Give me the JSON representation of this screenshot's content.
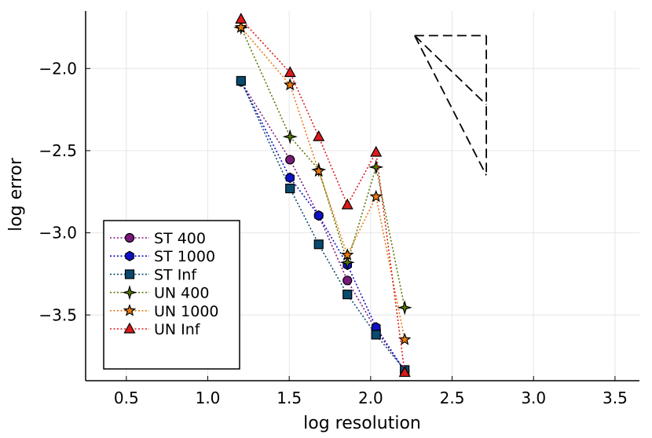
{
  "chart_data": {
    "type": "line",
    "title": "",
    "xlabel": "log resolution",
    "ylabel": "log error",
    "xlim": [
      0.25,
      3.65
    ],
    "ylim": [
      -3.9,
      -1.65
    ],
    "grid": true,
    "legend_position": "bottom-left",
    "xticks": [
      0.5,
      1.0,
      1.5,
      2.0,
      2.5,
      3.0,
      3.5
    ],
    "xtick_labels": [
      "0.5",
      "1.0",
      "1.5",
      "2.0",
      "2.5",
      "3.0",
      "3.5"
    ],
    "yticks": [
      -2.0,
      -2.5,
      -3.0,
      -3.5
    ],
    "ytick_labels": [
      "−2.0",
      "−2.5",
      "−3.0",
      "−3.5"
    ],
    "series": [
      {
        "name": "ST 400",
        "color": "#7a1a7a",
        "marker": "circle",
        "x": [
          1.204,
          1.505,
          1.681,
          1.857,
          2.033,
          2.209
        ],
        "y": [
          -2.08,
          -2.555,
          -2.895,
          -3.29,
          -3.59,
          -3.84
        ]
      },
      {
        "name": "ST 1000",
        "color": "#1010c8",
        "marker": "hexagon",
        "x": [
          1.204,
          1.505,
          1.681,
          1.857,
          2.033,
          2.209
        ],
        "y": [
          -2.08,
          -2.665,
          -2.895,
          -3.195,
          -3.575,
          -3.84
        ]
      },
      {
        "name": "ST Inf",
        "color": "#0a4a6e",
        "marker": "square",
        "x": [
          1.204,
          1.505,
          1.681,
          1.857,
          2.033,
          2.209
        ],
        "y": [
          -2.075,
          -2.73,
          -3.07,
          -3.375,
          -3.62,
          -3.835
        ]
      },
      {
        "name": "UN 400",
        "color": "#557a00",
        "marker": "star4",
        "x": [
          1.204,
          1.505,
          1.681,
          1.857,
          2.033,
          2.209
        ],
        "y": [
          -1.75,
          -2.415,
          -2.615,
          -3.18,
          -2.6,
          -3.455
        ]
      },
      {
        "name": "UN 1000",
        "color": "#e87a10",
        "marker": "star5",
        "x": [
          1.204,
          1.505,
          1.681,
          1.857,
          2.033,
          2.209
        ],
        "y": [
          -1.75,
          -2.1,
          -2.625,
          -3.135,
          -2.78,
          -3.65
        ]
      },
      {
        "name": "UN Inf",
        "color": "#dd1a1a",
        "marker": "triangle",
        "x": [
          1.204,
          1.505,
          1.681,
          1.857,
          2.033,
          2.209
        ],
        "y": [
          -1.7,
          -2.025,
          -2.415,
          -2.83,
          -2.51,
          -3.85
        ]
      }
    ],
    "reference_triangle": {
      "style": "dashed",
      "apex": [
        2.27,
        -1.8
      ],
      "corner_x": 2.71,
      "corner_y_low": -2.65,
      "corner_y_mid": -2.22
    }
  }
}
